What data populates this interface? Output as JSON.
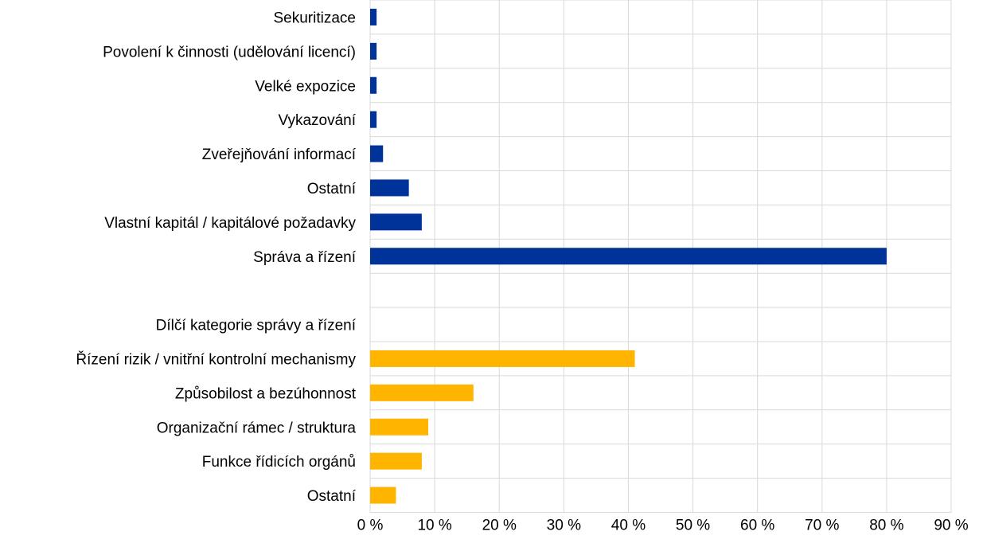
{
  "chart_data": {
    "type": "bar",
    "orientation": "horizontal",
    "categories": [
      "Sekuritizace",
      "Povolení k činnosti (udělování licencí)",
      "Velké expozice",
      "Vykazování",
      "Zveřejňování informací",
      "Ostatní",
      "Vlastní kapitál / kapitálové požadavky",
      "Správa a řízení",
      "",
      "Dílčí kategorie správy a řízení",
      "Řízení rizik / vnitřní kontrolní mechanismy",
      "Způsobilost a bezúhonnost",
      "Organizační rámec / struktura",
      "Funkce řídicích orgánů",
      "Ostatní"
    ],
    "values": [
      1,
      1,
      1,
      1,
      2,
      6,
      8,
      80,
      null,
      null,
      41,
      16,
      9,
      8,
      4
    ],
    "bar_groups": [
      "primary",
      "primary",
      "primary",
      "primary",
      "primary",
      "primary",
      "primary",
      "primary",
      "none",
      "none",
      "sub",
      "sub",
      "sub",
      "sub",
      "sub"
    ],
    "colors": {
      "primary": "#003399",
      "sub": "#FFB400",
      "grid": "#d9d9d9"
    },
    "x_ticks": [
      "0 %",
      "10 %",
      "20 %",
      "30 %",
      "40 %",
      "50 %",
      "60 %",
      "70 %",
      "80 %",
      "90 %"
    ],
    "xlim": [
      0,
      90
    ],
    "unit": "%",
    "title": "",
    "xlabel": "",
    "ylabel": "",
    "grid": true,
    "legend": "none"
  }
}
